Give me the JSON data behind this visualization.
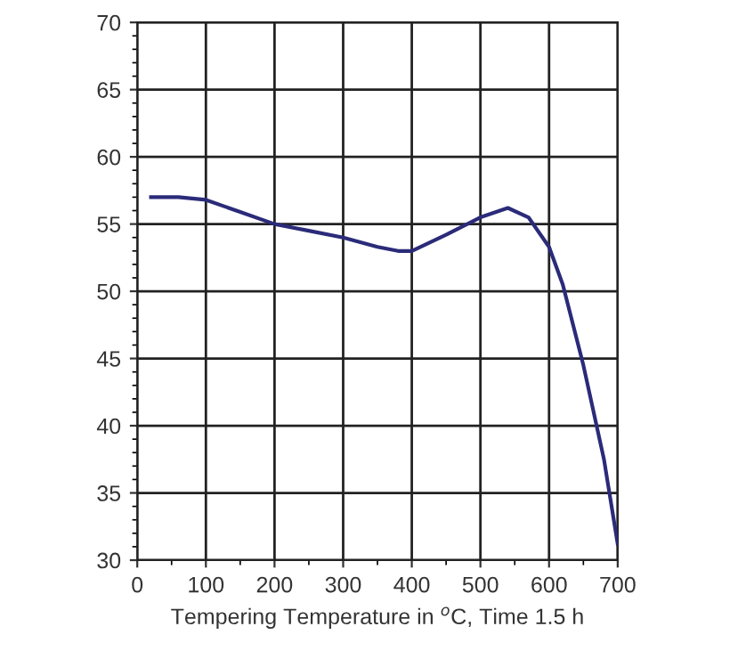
{
  "chart_data": {
    "type": "line",
    "xlabel": "Tempering Temperature in $^{o}$C, Time 1.5 h",
    "x": [
      20,
      60,
      100,
      150,
      200,
      250,
      300,
      350,
      380,
      400,
      450,
      500,
      540,
      570,
      600,
      620,
      650,
      680,
      700
    ],
    "series": [
      {
        "color": "#2b2b7a",
        "values": [
          57,
          57,
          56.8,
          55.9,
          55,
          54.5,
          54,
          53.3,
          53,
          53,
          54.2,
          55.5,
          56.2,
          55.5,
          53.3,
          50.5,
          44.5,
          37.5,
          31.2
        ]
      }
    ],
    "xlim": [
      0,
      700
    ],
    "xticks": [
      0,
      100,
      200,
      300,
      400,
      500,
      600,
      700
    ],
    "ylim": [
      30,
      70
    ],
    "yticks": [
      30,
      35,
      40,
      45,
      50,
      55,
      60,
      65,
      70
    ],
    "grid": true,
    "marker": "none",
    "line_style": "solid"
  }
}
